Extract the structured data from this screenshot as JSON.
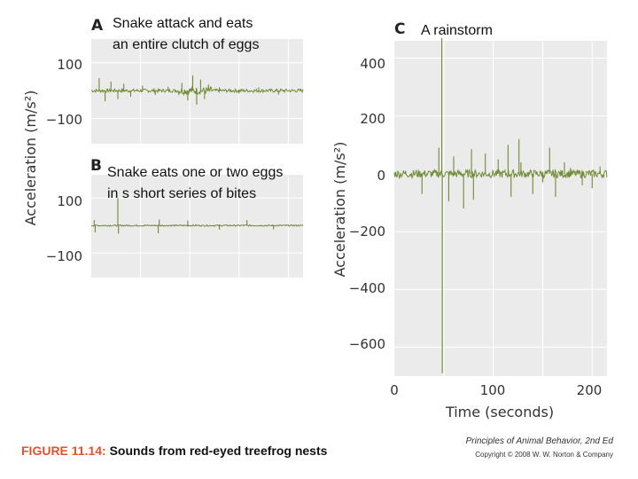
{
  "chart_data": [
    {
      "type": "line",
      "panel": "A",
      "title": "Snake attack and eats an entire clutch of eggs",
      "title_lines": [
        "Snake attack and eats",
        "an entire clutch of eggs"
      ],
      "yticks": [
        "100",
        "−100"
      ],
      "ytick_values": [
        100,
        -100
      ],
      "ylim": [
        -190,
        185
      ],
      "spikes": [
        {
          "t": 8,
          "y": 45
        },
        {
          "t": 14,
          "y": -38
        },
        {
          "t": 20,
          "y": 32
        },
        {
          "t": 27,
          "y": -30
        },
        {
          "t": 33,
          "y": 25
        },
        {
          "t": 40,
          "y": -22
        },
        {
          "t": 52,
          "y": 18
        },
        {
          "t": 65,
          "y": -15
        },
        {
          "t": 78,
          "y": 14
        },
        {
          "t": 92,
          "y": 28
        },
        {
          "t": 98,
          "y": -35
        },
        {
          "t": 103,
          "y": 55
        },
        {
          "t": 107,
          "y": -50
        },
        {
          "t": 111,
          "y": 40
        },
        {
          "t": 115,
          "y": -30
        },
        {
          "t": 119,
          "y": 22
        },
        {
          "t": 130,
          "y": 12
        },
        {
          "t": 150,
          "y": -10
        },
        {
          "t": 170,
          "y": 12
        },
        {
          "t": 190,
          "y": -14
        }
      ]
    },
    {
      "type": "line",
      "panel": "B",
      "title": "Snake eats one or two eggs in s short series of bites",
      "title_lines": [
        "Snake eats one or two eggs",
        "in s short series of bites"
      ],
      "yticks": [
        "100",
        "−100"
      ],
      "ytick_values": [
        100,
        -100
      ],
      "ylim": [
        -190,
        185
      ],
      "spikes": [
        {
          "t": 3,
          "y": 20
        },
        {
          "t": 4,
          "y": -25
        },
        {
          "t": 27,
          "y": 100
        },
        {
          "t": 27.6,
          "y": -30
        },
        {
          "t": 68,
          "y": -28
        },
        {
          "t": 69,
          "y": 22
        },
        {
          "t": 98,
          "y": 18
        },
        {
          "t": 130,
          "y": -15
        },
        {
          "t": 158,
          "y": 20
        },
        {
          "t": 185,
          "y": -14
        }
      ]
    },
    {
      "type": "line",
      "panel": "C",
      "title": "A rainstorm",
      "xlabel": "Time (seconds)",
      "ylabel": "Acceleration (m/s²)",
      "xticks": [
        "0",
        "100",
        "200"
      ],
      "xtick_values": [
        0,
        100,
        200
      ],
      "yticks": [
        "400",
        "200",
        "0",
        "−200",
        "−400",
        "−600"
      ],
      "ytick_values": [
        400,
        200,
        0,
        -200,
        -400,
        -600
      ],
      "xlim": [
        0,
        215
      ],
      "ylim": [
        -700,
        460
      ],
      "spikes": [
        {
          "t": 48,
          "y": 470
        },
        {
          "t": 48.5,
          "y": -690
        },
        {
          "t": 28,
          "y": -70
        },
        {
          "t": 45,
          "y": 90
        },
        {
          "t": 55,
          "y": -95
        },
        {
          "t": 60,
          "y": 60
        },
        {
          "t": 70,
          "y": -120
        },
        {
          "t": 78,
          "y": 85
        },
        {
          "t": 80,
          "y": -90
        },
        {
          "t": 92,
          "y": 70
        },
        {
          "t": 105,
          "y": 50
        },
        {
          "t": 115,
          "y": 100
        },
        {
          "t": 118,
          "y": -80
        },
        {
          "t": 126,
          "y": 120
        },
        {
          "t": 128,
          "y": 40
        },
        {
          "t": 140,
          "y": -70
        },
        {
          "t": 150,
          "y": -30
        },
        {
          "t": 157,
          "y": 90
        },
        {
          "t": 163,
          "y": -80
        },
        {
          "t": 172,
          "y": 40
        },
        {
          "t": 178,
          "y": 20
        },
        {
          "t": 190,
          "y": -40
        },
        {
          "t": 200,
          "y": -50
        },
        {
          "t": 208,
          "y": 25
        }
      ]
    }
  ],
  "left_ylabel": "Acceleration (m/s²)",
  "caption": {
    "number": "FIGURE 11.14:",
    "text": "Sounds from red-eyed treefrog nests"
  },
  "credit": {
    "book": "Principles of Animal Behavior, 2nd Ed",
    "copyright": "Copyright © 2008 W. W. Norton & Company"
  }
}
